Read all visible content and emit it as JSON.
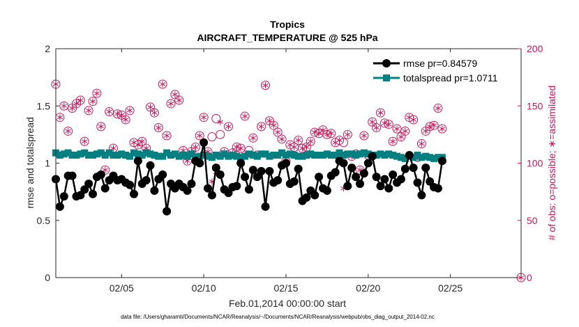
{
  "chart_data": {
    "type": "line",
    "title": "Tropics",
    "subtitle": "AIRCRAFT_TEMPERATURE @ 525 hPa",
    "xlabel": "Feb.01,2014 00:00:00 start",
    "ylabel": "rmse and totalspread",
    "ylabel_right": "# of obs: o=possible; ∗=assimilated",
    "xlim": [
      1,
      29.3
    ],
    "ylim": [
      0,
      2
    ],
    "ylim_right": [
      0,
      200
    ],
    "x_ticks": [
      5,
      10,
      15,
      20,
      25
    ],
    "x_tick_labels": [
      "02/05",
      "02/10",
      "02/15",
      "02/20",
      "02/25"
    ],
    "y_ticks": [
      0,
      0.5,
      1,
      1.5,
      2
    ],
    "y_tick_labels": [
      "0",
      "0.5",
      "1",
      "1.5",
      "2"
    ],
    "y_right_ticks": [
      0,
      50,
      100,
      150,
      200
    ],
    "y_right_tick_labels": [
      "0",
      "50",
      "100",
      "150",
      "200"
    ],
    "legend_position": "top-right",
    "footnote": "data file: /Users/gharamti/Documents/NCAR/Reanalysis/~/Documents/NCAR/Reanalysis/webpub/obs_diag_output_2014-02.nc",
    "colors": {
      "rmse": "#000000",
      "spread": "#008080",
      "obs": "#c2185b"
    },
    "series": [
      {
        "name": "rmse pr=0.84579",
        "axis": "left",
        "values": [
          0.86,
          0.62,
          0.71,
          0.89,
          0.89,
          0.71,
          0.72,
          0.77,
          0.82,
          0.73,
          0.88,
          0.9,
          0.78,
          0.85,
          0.89,
          0.85,
          0.86,
          0.83,
          0.81,
          0.73,
          1.02,
          0.82,
          0.85,
          0.98,
          0.76,
          0.86,
          0.9,
          0.58,
          0.82,
          0.78,
          0.82,
          0.79,
          0.76,
          0.82,
          1.02,
          1.0,
          1.18,
          0.78,
          0.72,
          0.96,
          0.9,
          0.77,
          0.74,
          0.79,
          0.8,
          1.0,
          0.88,
          0.77,
          0.94,
          0.88,
          0.93,
          0.62,
          0.93,
          0.83,
          0.85,
          0.98,
          1.0,
          0.82,
          0.84,
          0.95,
          0.67,
          0.7,
          0.76,
          0.72,
          0.88,
          0.78,
          0.76,
          0.89,
          0.92,
          1.02,
          1.0,
          0.8,
          0.96,
          0.88,
          0.82,
          0.91,
          1.0,
          1.06,
          0.88,
          0.8,
          0.86,
          0.78,
          0.9,
          0.83,
          0.86,
          0.95,
          1.07,
          0.96,
          0.83,
          0.72,
          0.96,
          0.84,
          0.79,
          0.78,
          1.02
        ]
      },
      {
        "name": "totalspread pr=1.0711",
        "axis": "left",
        "values": [
          1.09,
          1.07,
          1.08,
          1.09,
          1.07,
          1.07,
          1.08,
          1.09,
          1.07,
          1.07,
          1.08,
          1.09,
          1.07,
          1.09,
          1.07,
          1.07,
          1.08,
          1.07,
          1.06,
          1.09,
          1.08,
          1.07,
          1.09,
          1.08,
          1.07,
          1.06,
          1.06,
          1.09,
          1.07,
          1.08,
          1.06,
          1.07,
          1.06,
          1.08,
          1.05,
          1.06,
          1.07,
          1.06,
          1.05,
          1.07,
          1.06,
          1.08,
          1.06,
          1.07,
          1.06,
          1.05,
          1.06,
          1.08,
          1.07,
          1.06,
          1.08,
          1.08,
          1.06,
          1.07,
          1.07,
          1.09,
          1.07,
          1.08,
          1.07,
          1.06,
          1.06,
          1.07,
          1.08,
          1.07,
          1.07,
          1.07,
          1.08,
          1.07,
          1.07,
          1.09,
          1.07,
          1.08,
          1.08,
          1.07,
          1.08,
          1.09,
          1.08,
          1.07,
          1.07,
          1.08,
          1.07,
          1.08,
          1.07,
          1.06,
          1.05,
          1.04,
          1.06,
          1.05,
          1.07,
          1.05,
          1.06,
          1.05,
          1.04,
          1.05,
          1.05
        ]
      },
      {
        "name": "possible",
        "axis": "right",
        "marker": "circle",
        "values": [
          169,
          140,
          150,
          128,
          148,
          152,
          155,
          119,
          146,
          154,
          161,
          132,
          94,
          145,
          113,
          143,
          142,
          138,
          146,
          118,
          116,
          119,
          113,
          149,
          144,
          131,
          169,
          124,
          152,
          160,
          155,
          111,
          102,
          110,
          114,
          124,
          140,
          110,
          123,
          139,
          125,
          110,
          132,
          109,
          114,
          113,
          141,
          111,
          122,
          107,
          132,
          168,
          137,
          133,
          127,
          121,
          102,
          116,
          114,
          120,
          113,
          114,
          119,
          127,
          126,
          129,
          125,
          126,
          118,
          120,
          118,
          125,
          106,
          108,
          94,
          124,
          107,
          136,
          131,
          144,
          135,
          134,
          119,
          130,
          123,
          128,
          140,
          138,
          105,
          117,
          128,
          132,
          133,
          148,
          130
        ]
      },
      {
        "name": "assimilated",
        "axis": "right",
        "marker": "asterisk",
        "values": [
          169,
          140,
          150,
          128,
          148,
          152,
          155,
          119,
          146,
          154,
          161,
          132,
          94,
          145,
          113,
          143,
          142,
          138,
          146,
          118,
          116,
          119,
          113,
          149,
          144,
          131,
          169,
          124,
          152,
          160,
          155,
          111,
          102,
          110,
          114,
          124,
          140,
          110,
          84,
          92,
          136,
          110,
          132,
          109,
          114,
          113,
          141,
          77,
          122,
          107,
          132,
          168,
          137,
          133,
          127,
          121,
          102,
          116,
          114,
          120,
          113,
          114,
          119,
          127,
          126,
          129,
          125,
          126,
          118,
          120,
          78,
          125,
          106,
          108,
          94,
          124,
          107,
          136,
          131,
          144,
          135,
          134,
          119,
          130,
          123,
          128,
          140,
          138,
          105,
          117,
          128,
          132,
          133,
          148,
          130
        ]
      }
    ],
    "final_possible_zero": {
      "x": 29.3,
      "value": 0
    },
    "legend": [
      {
        "key": "rmse",
        "label": "rmse pr=0.84579"
      },
      {
        "key": "spread",
        "label": "totalspread pr=1.0711"
      }
    ]
  }
}
